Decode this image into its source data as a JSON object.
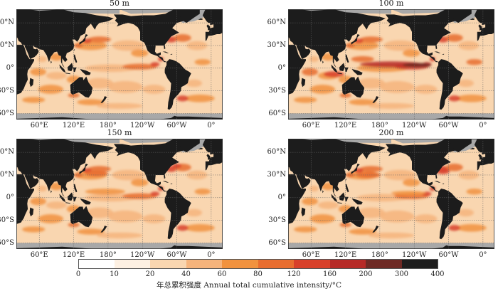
{
  "panels": [
    {
      "title": "50 m"
    },
    {
      "title": "100 m"
    },
    {
      "title": "150 m"
    },
    {
      "title": "200 m"
    }
  ],
  "lat_labels": [
    "60°N",
    "30°N",
    "0°",
    "30°S",
    "60°S"
  ],
  "lon_labels": [
    "60°E",
    "120°E",
    "180°",
    "120°W",
    "60°W",
    "0°"
  ],
  "legend": {
    "title": "年总累积强度 Annual total cumulative intensity/°C",
    "bins": [
      {
        "from": 0,
        "to": 10,
        "color": "#ffffff"
      },
      {
        "from": 10,
        "to": 20,
        "color": "#fdf0e2"
      },
      {
        "from": 20,
        "to": 40,
        "color": "#f9d6b0"
      },
      {
        "from": 40,
        "to": 60,
        "color": "#f6b47c"
      },
      {
        "from": 60,
        "to": 80,
        "color": "#f1923e"
      },
      {
        "from": 80,
        "to": 120,
        "color": "#e86d2f"
      },
      {
        "from": 120,
        "to": 160,
        "color": "#d8402a"
      },
      {
        "from": 160,
        "to": 200,
        "color": "#b62a27"
      },
      {
        "from": 200,
        "to": 300,
        "color": "#6e2a25"
      },
      {
        "from": 300,
        "to": 400,
        "color": "#1e1e1e"
      }
    ],
    "tick_labels": [
      "0",
      "10",
      "20",
      "40",
      "60",
      "80",
      "120",
      "160",
      "200",
      "300",
      "400"
    ]
  },
  "colors": {
    "land": "#1c1c1c",
    "ice": "#a8a8a8",
    "ocean_base": "#f9d6b0"
  }
}
